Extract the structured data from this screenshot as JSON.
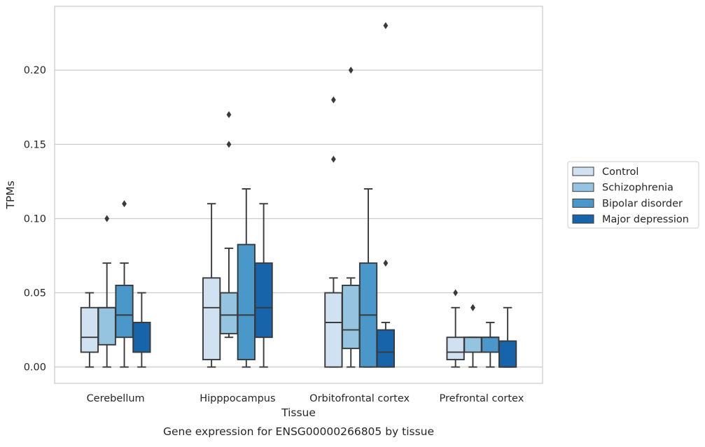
{
  "chart_data": {
    "type": "box",
    "caption": "Gene expression for ENSG00000266805 by tissue",
    "xlabel": "Tissue",
    "ylabel": "TPMs",
    "categories": [
      "Cerebellum",
      "Hipppocampus",
      "Orbitofrontal cortex",
      "Prefrontal cortex"
    ],
    "ylim": [
      -0.011,
      0.243
    ],
    "yticks": [
      0.0,
      0.05,
      0.1,
      0.15,
      0.2
    ],
    "ytick_labels": [
      "0.00",
      "0.05",
      "0.10",
      "0.15",
      "0.20"
    ],
    "grid": "horizontal",
    "legend_position": "right",
    "series": [
      {
        "name": "Control",
        "color": "#d0e1f2",
        "boxes": [
          {
            "category": "Cerebellum",
            "whislo": 0.0,
            "q1": 0.01,
            "med": 0.02,
            "q3": 0.04,
            "whishi": 0.05,
            "fliers": []
          },
          {
            "category": "Hipppocampus",
            "whislo": 0.0,
            "q1": 0.005,
            "med": 0.04,
            "q3": 0.06,
            "whishi": 0.11,
            "fliers": []
          },
          {
            "category": "Orbitofrontal cortex",
            "whislo": 0.0,
            "q1": 0.0,
            "med": 0.03,
            "q3": 0.05,
            "whishi": 0.06,
            "fliers": [
              0.14,
              0.18
            ]
          },
          {
            "category": "Prefrontal cortex",
            "whislo": 0.0,
            "q1": 0.005,
            "med": 0.01,
            "q3": 0.02,
            "whishi": 0.04,
            "fliers": [
              0.05
            ]
          }
        ]
      },
      {
        "name": "Schizophrenia",
        "color": "#94c4df",
        "boxes": [
          {
            "category": "Cerebellum",
            "whislo": 0.0,
            "q1": 0.015,
            "med": 0.04,
            "q3": 0.04,
            "whishi": 0.07,
            "fliers": [
              0.1
            ]
          },
          {
            "category": "Hipppocampus",
            "whislo": 0.02,
            "q1": 0.0225,
            "med": 0.035,
            "q3": 0.05,
            "whishi": 0.08,
            "fliers": [
              0.15,
              0.17
            ]
          },
          {
            "category": "Orbitofrontal cortex",
            "whislo": 0.0,
            "q1": 0.0125,
            "med": 0.025,
            "q3": 0.055,
            "whishi": 0.06,
            "fliers": [
              0.2
            ]
          },
          {
            "category": "Prefrontal cortex",
            "whislo": 0.0,
            "q1": 0.01,
            "med": 0.02,
            "q3": 0.02,
            "whishi": 0.02,
            "fliers": [
              0.04,
              0.04
            ]
          }
        ]
      },
      {
        "name": "Bipolar disorder",
        "color": "#4a98c9",
        "boxes": [
          {
            "category": "Cerebellum",
            "whislo": 0.0,
            "q1": 0.02,
            "med": 0.035,
            "q3": 0.055,
            "whishi": 0.07,
            "fliers": [
              0.11
            ]
          },
          {
            "category": "Hipppocampus",
            "whislo": 0.0,
            "q1": 0.005,
            "med": 0.035,
            "q3": 0.0825,
            "whishi": 0.12,
            "fliers": []
          },
          {
            "category": "Orbitofrontal cortex",
            "whislo": 0.0,
            "q1": 0.0,
            "med": 0.035,
            "q3": 0.07,
            "whishi": 0.12,
            "fliers": []
          },
          {
            "category": "Prefrontal cortex",
            "whislo": 0.0,
            "q1": 0.01,
            "med": 0.02,
            "q3": 0.02,
            "whishi": 0.03,
            "fliers": []
          }
        ]
      },
      {
        "name": "Major depression",
        "color": "#1764ab",
        "boxes": [
          {
            "category": "Cerebellum",
            "whislo": 0.0,
            "q1": 0.01,
            "med": 0.03,
            "q3": 0.03,
            "whishi": 0.05,
            "fliers": []
          },
          {
            "category": "Hipppocampus",
            "whislo": 0.0,
            "q1": 0.02,
            "med": 0.04,
            "q3": 0.07,
            "whishi": 0.11,
            "fliers": []
          },
          {
            "category": "Orbitofrontal cortex",
            "whislo": 0.0,
            "q1": 0.0,
            "med": 0.01,
            "q3": 0.025,
            "whishi": 0.03,
            "fliers": [
              0.07,
              0.23
            ]
          },
          {
            "category": "Prefrontal cortex",
            "whislo": 0.0,
            "q1": 0.0,
            "med": 0.0,
            "q3": 0.0175,
            "whishi": 0.04,
            "fliers": []
          }
        ]
      }
    ]
  }
}
